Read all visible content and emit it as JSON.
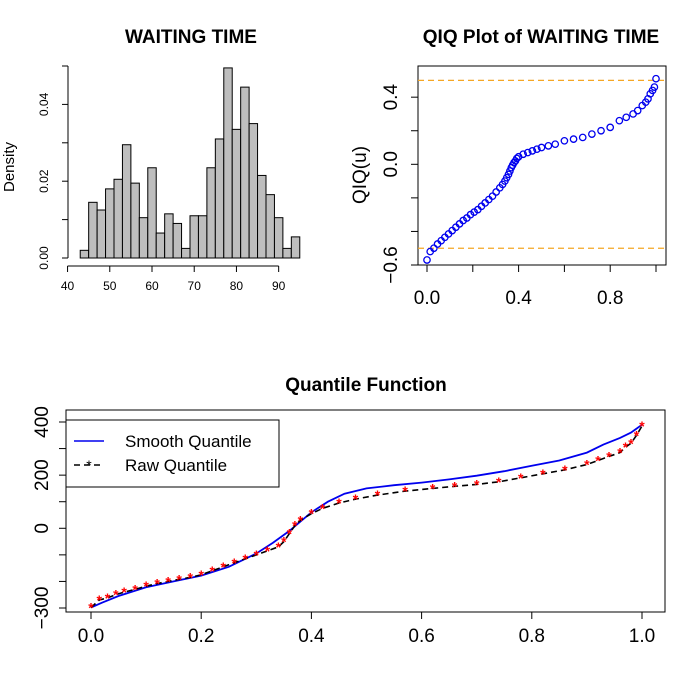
{
  "chart_data": [
    {
      "type": "bar",
      "title": "WAITING TIME",
      "xlabel": "",
      "ylabel": "Density",
      "xlim": [
        42,
        96
      ],
      "ylim": [
        0,
        0.05
      ],
      "x_ticks": [
        40,
        50,
        60,
        70,
        80,
        90
      ],
      "y_ticks": [
        0.0,
        0.02,
        0.04
      ],
      "y_tick_labels": [
        "0.00",
        "0.02",
        "0.04"
      ],
      "bin_edges": [
        43,
        45,
        47,
        49,
        51,
        53,
        55,
        57,
        59,
        61,
        63,
        65,
        67,
        69,
        71,
        73,
        75,
        77,
        79,
        81,
        83,
        85,
        87,
        89,
        91,
        93,
        95
      ],
      "values": [
        0.002,
        0.0145,
        0.0125,
        0.018,
        0.0205,
        0.0295,
        0.0195,
        0.0105,
        0.0235,
        0.0065,
        0.0115,
        0.009,
        0.0025,
        0.011,
        0.011,
        0.0235,
        0.031,
        0.0495,
        0.0335,
        0.0445,
        0.035,
        0.0215,
        0.0165,
        0.0105,
        0.0025,
        0.0055,
        0.002
      ],
      "bar_color": "#bebebe"
    },
    {
      "type": "scatter",
      "title": "QIQ Plot of WAITING TIME",
      "xlabel": "",
      "ylabel": "QIQ(u)",
      "xlim": [
        0,
        1
      ],
      "ylim": [
        -0.6,
        0.55
      ],
      "x_ticks": [
        0.0,
        0.4,
        0.8
      ],
      "x_tick_labels": [
        "0.0",
        "0.4",
        "0.8"
      ],
      "y_ticks": [
        -0.6,
        0.0,
        0.4
      ],
      "y_tick_labels": [
        "−0.6",
        "0.0",
        "0.4"
      ],
      "hlines": [
        0.5,
        -0.5
      ],
      "hline_color": "#f5a623",
      "point_color": "#0000ee",
      "x": [
        0.0,
        0.014,
        0.03,
        0.046,
        0.062,
        0.078,
        0.094,
        0.11,
        0.126,
        0.142,
        0.158,
        0.174,
        0.19,
        0.206,
        0.222,
        0.238,
        0.254,
        0.27,
        0.286,
        0.302,
        0.318,
        0.33,
        0.34,
        0.348,
        0.356,
        0.362,
        0.368,
        0.374,
        0.38,
        0.386,
        0.392,
        0.4,
        0.42,
        0.44,
        0.46,
        0.48,
        0.5,
        0.53,
        0.56,
        0.6,
        0.64,
        0.68,
        0.72,
        0.76,
        0.8,
        0.84,
        0.87,
        0.9,
        0.92,
        0.94,
        0.955,
        0.965,
        0.975,
        0.985,
        0.993,
        1.0
      ],
      "y": [
        -0.57,
        -0.52,
        -0.5,
        -0.475,
        -0.455,
        -0.435,
        -0.415,
        -0.395,
        -0.375,
        -0.355,
        -0.335,
        -0.32,
        -0.3,
        -0.285,
        -0.27,
        -0.25,
        -0.23,
        -0.21,
        -0.19,
        -0.165,
        -0.14,
        -0.12,
        -0.1,
        -0.08,
        -0.06,
        -0.04,
        -0.02,
        -0.005,
        0.01,
        0.02,
        0.035,
        0.045,
        0.06,
        0.07,
        0.08,
        0.09,
        0.1,
        0.11,
        0.12,
        0.14,
        0.15,
        0.16,
        0.18,
        0.2,
        0.22,
        0.26,
        0.28,
        0.3,
        0.32,
        0.35,
        0.37,
        0.39,
        0.42,
        0.44,
        0.46,
        0.51
      ]
    },
    {
      "type": "line",
      "title": "Quantile Function",
      "xlabel": "",
      "ylabel": "",
      "xlim": [
        0,
        1
      ],
      "ylim": [
        -300,
        400
      ],
      "x_ticks": [
        0.0,
        0.2,
        0.4,
        0.6,
        0.8,
        1.0
      ],
      "x_tick_labels": [
        "0.0",
        "0.2",
        "0.4",
        "0.6",
        "0.8",
        "1.0"
      ],
      "y_ticks": [
        -300,
        -200,
        -100,
        0,
        100,
        200,
        300,
        400
      ],
      "y_tick_labels": [
        "−300",
        "",
        "",
        "0",
        "",
        "200",
        "",
        "400"
      ],
      "legend": {
        "position": "top-left",
        "entries": [
          "Smooth Quantile",
          "Raw Quantile"
        ]
      },
      "series": [
        {
          "name": "Smooth Quantile",
          "style": "solid",
          "color": "#0000ee",
          "x": [
            0.0,
            0.02,
            0.05,
            0.1,
            0.15,
            0.2,
            0.25,
            0.3,
            0.33,
            0.36,
            0.38,
            0.4,
            0.43,
            0.46,
            0.5,
            0.55,
            0.6,
            0.65,
            0.7,
            0.75,
            0.8,
            0.85,
            0.9,
            0.93,
            0.96,
            0.98,
            1.0
          ],
          "y": [
            -298,
            -280,
            -255,
            -222,
            -200,
            -178,
            -145,
            -95,
            -55,
            -10,
            25,
            60,
            100,
            130,
            150,
            162,
            172,
            184,
            198,
            215,
            235,
            255,
            285,
            315,
            340,
            360,
            390
          ]
        },
        {
          "name": "Raw Quantile",
          "style": "dashed",
          "color": "#000000",
          "marker_color": "#ff0000",
          "x": [
            0.0,
            0.015,
            0.03,
            0.045,
            0.06,
            0.08,
            0.1,
            0.12,
            0.14,
            0.16,
            0.18,
            0.2,
            0.22,
            0.24,
            0.26,
            0.28,
            0.3,
            0.32,
            0.34,
            0.35,
            0.36,
            0.37,
            0.38,
            0.4,
            0.42,
            0.45,
            0.48,
            0.52,
            0.57,
            0.62,
            0.66,
            0.7,
            0.74,
            0.78,
            0.82,
            0.86,
            0.9,
            0.92,
            0.94,
            0.96,
            0.97,
            0.98,
            0.99,
            1.0
          ],
          "y": [
            -298,
            -270,
            -262,
            -250,
            -240,
            -230,
            -218,
            -208,
            -200,
            -192,
            -185,
            -175,
            -160,
            -145,
            -130,
            -115,
            -100,
            -85,
            -70,
            -50,
            -20,
            10,
            30,
            55,
            75,
            95,
            110,
            125,
            140,
            150,
            158,
            165,
            175,
            190,
            205,
            220,
            240,
            255,
            270,
            285,
            305,
            320,
            350,
            385
          ]
        }
      ]
    }
  ]
}
